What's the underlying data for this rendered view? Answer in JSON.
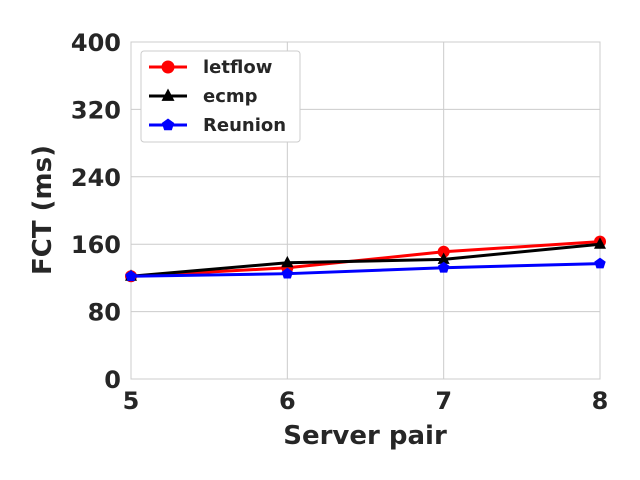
{
  "chart_data": {
    "type": "line",
    "xlabel": "Server pair",
    "ylabel": "FCT (ms)",
    "x": [
      5,
      6,
      7,
      8
    ],
    "xlim": [
      5,
      8
    ],
    "ylim": [
      0,
      400
    ],
    "xticks": [
      "5",
      "6",
      "7",
      "8"
    ],
    "yticks": [
      "0",
      "80",
      "160",
      "240",
      "320",
      "400"
    ],
    "grid": true,
    "legend_position": "top-left",
    "series": [
      {
        "name": "letflow",
        "values": [
          122,
          132,
          151,
          163
        ],
        "color": "#ff0000",
        "marker": "circle"
      },
      {
        "name": "ecmp",
        "values": [
          122,
          138,
          142,
          160
        ],
        "color": "#000000",
        "marker": "triangle"
      },
      {
        "name": "Reunion",
        "values": [
          122,
          125,
          132,
          137
        ],
        "color": "#0000ff",
        "marker": "pentagon"
      }
    ]
  }
}
